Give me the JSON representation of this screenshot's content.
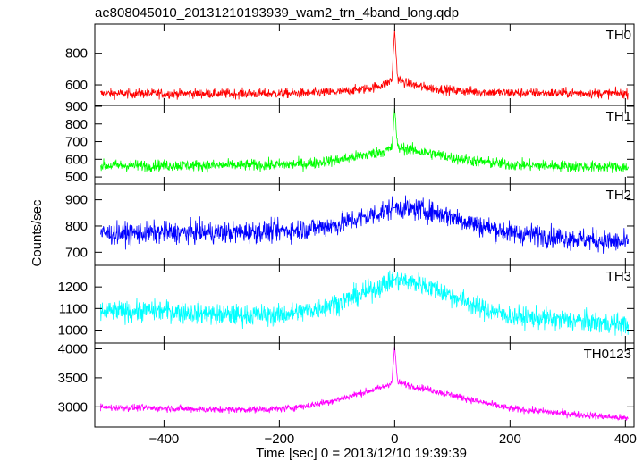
{
  "title": "ae808045010_20131210193939_wam2_trn_4band_long.qdp",
  "ylabel": "Counts/sec",
  "xlabel": "Time [sec] 0 = 2013/12/10 19:39:39",
  "x_ticks": [
    -400,
    -200,
    0,
    200,
    400
  ],
  "chart_data": {
    "type": "line",
    "title": "ae808045010_20131210193939_wam2_trn_4band_long.qdp",
    "xlabel": "Time [sec] 0 = 2013/12/10 19:39:39",
    "ylabel": "Counts/sec",
    "xlim": [
      -520,
      415
    ],
    "x_ticks": [
      -400,
      -200,
      0,
      200,
      400
    ],
    "grid": false,
    "panels": [
      {
        "name": "TH0",
        "color": "#ff0000",
        "ylim": [
          470,
          985
        ],
        "yticks": [
          600,
          800
        ],
        "baseline": 545,
        "noise": 28,
        "peak_broad": 70,
        "broad_width": 45,
        "spike": 330,
        "profile_x": [
          -510,
          -400,
          -300,
          -200,
          -150,
          -100,
          -50,
          -20,
          -5,
          0,
          5,
          20,
          50,
          100,
          150,
          200,
          300,
          405
        ],
        "profile_y": [
          545,
          545,
          545,
          545,
          548,
          555,
          575,
          600,
          630,
          950,
          640,
          610,
          585,
          565,
          555,
          550,
          548,
          545
        ]
      },
      {
        "name": "TH1",
        "color": "#00ff00",
        "ylim": [
          460,
          905
        ],
        "yticks": [
          500,
          600,
          700,
          800,
          900
        ],
        "baseline": 565,
        "noise": 30,
        "profile_x": [
          -510,
          -400,
          -300,
          -200,
          -150,
          -100,
          -50,
          -20,
          -5,
          0,
          5,
          20,
          50,
          100,
          150,
          200,
          300,
          405
        ],
        "profile_y": [
          565,
          565,
          565,
          568,
          575,
          595,
          625,
          645,
          660,
          890,
          665,
          660,
          640,
          610,
          585,
          570,
          560,
          555
        ]
      },
      {
        "name": "TH2",
        "color": "#0000ff",
        "ylim": [
          650,
          960
        ],
        "yticks": [
          700,
          800,
          900
        ],
        "baseline": 775,
        "noise": 38,
        "profile_x": [
          -510,
          -400,
          -300,
          -200,
          -150,
          -100,
          -50,
          0,
          50,
          100,
          150,
          200,
          300,
          405
        ],
        "profile_y": [
          770,
          775,
          775,
          780,
          790,
          805,
          835,
          870,
          860,
          835,
          800,
          775,
          755,
          735
        ]
      },
      {
        "name": "TH3",
        "color": "#00ffff",
        "ylim": [
          940,
          1300
        ],
        "yticks": [
          1000,
          1100,
          1200
        ],
        "baseline": 1075,
        "noise": 45,
        "profile_x": [
          -510,
          -400,
          -300,
          -200,
          -150,
          -100,
          -50,
          0,
          50,
          100,
          150,
          200,
          300,
          405
        ],
        "profile_y": [
          1085,
          1090,
          1070,
          1070,
          1090,
          1125,
          1175,
          1235,
          1210,
          1160,
          1100,
          1065,
          1045,
          1025
        ]
      },
      {
        "name": "TH0123",
        "color": "#ff00ff",
        "ylim": [
          2650,
          4100
        ],
        "yticks": [
          3000,
          3500,
          4000
        ],
        "baseline": 2960,
        "noise": 55,
        "profile_x": [
          -510,
          -400,
          -300,
          -200,
          -150,
          -100,
          -50,
          -20,
          -5,
          0,
          5,
          20,
          50,
          100,
          150,
          200,
          300,
          405
        ],
        "profile_y": [
          2990,
          2975,
          2950,
          2960,
          3020,
          3120,
          3260,
          3340,
          3420,
          4050,
          3420,
          3380,
          3320,
          3200,
          3080,
          2970,
          2880,
          2800
        ]
      }
    ]
  }
}
